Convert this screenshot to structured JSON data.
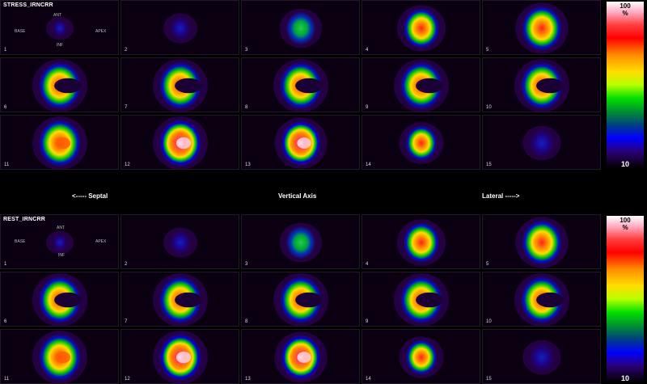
{
  "stress": {
    "title": "STRESS_IRNCRR",
    "orient": {
      "ant": "ANT",
      "base": "BASE",
      "apex": "APEX",
      "inf": "INF"
    },
    "scale": {
      "max": "100",
      "unit": "%",
      "min": "10"
    },
    "slices": [
      "1",
      "2",
      "3",
      "4",
      "5",
      "6",
      "7",
      "8",
      "9",
      "10",
      "11",
      "12",
      "13",
      "14",
      "15"
    ]
  },
  "axis": {
    "left": "<----- Septal",
    "center": "Vertical Axis",
    "right": "Lateral ----->"
  },
  "rest": {
    "title": "REST_IRNCRR",
    "orient": {
      "ant": "ANT",
      "base": "BASE",
      "apex": "APEX",
      "inf": "INF"
    },
    "scale": {
      "max": "100",
      "unit": "%",
      "min": "10"
    },
    "slices": [
      "1",
      "2",
      "3",
      "4",
      "5",
      "6",
      "7",
      "8",
      "9",
      "10",
      "11",
      "12",
      "13",
      "14",
      "15"
    ]
  },
  "colors": {
    "hot": "#ffffff",
    "high": "#ff0000",
    "mid": "#ffdd00",
    "low": "#00d000",
    "lower": "#0000ff",
    "bg": "#200040"
  }
}
